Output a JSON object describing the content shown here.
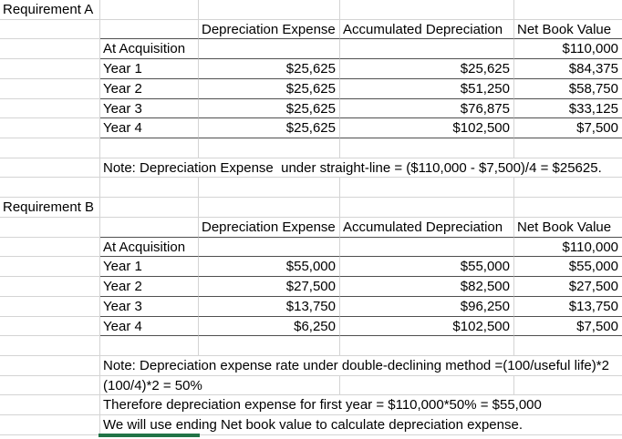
{
  "colors": {
    "gridline": "#d4d4d4",
    "table_border": "#4f4f4f",
    "selection_border_green": "#217346",
    "text": "#000000",
    "background": "#ffffff"
  },
  "requirement_a": {
    "title": "Requirement A",
    "headers": {
      "dep": "Depreciation Expense",
      "acc": "Accumulated Depreciation",
      "nbv": "Net Book Value"
    },
    "rows": [
      {
        "label": "At Acquisition",
        "dep": "",
        "acc": "",
        "nbv": "$110,000"
      },
      {
        "label": "Year 1",
        "dep": "$25,625",
        "acc": "$25,625",
        "nbv": "$84,375"
      },
      {
        "label": "Year 2",
        "dep": "$25,625",
        "acc": "$51,250",
        "nbv": "$58,750"
      },
      {
        "label": "Year 3",
        "dep": "$25,625",
        "acc": "$76,875",
        "nbv": "$33,125"
      },
      {
        "label": "Year 4",
        "dep": "$25,625",
        "acc": "$102,500",
        "nbv": "$7,500"
      }
    ],
    "note": "Note: Depreciation Expense  under straight-line = ($110,000 - $7,500)/4 = $25625."
  },
  "requirement_b": {
    "title": "Requirement B",
    "headers": {
      "dep": "Depreciation Expense",
      "acc": "Accumulated Depreciation",
      "nbv": "Net Book Value"
    },
    "rows": [
      {
        "label": "At Acquisition",
        "dep": "",
        "acc": "",
        "nbv": "$110,000"
      },
      {
        "label": "Year 1",
        "dep": "$55,000",
        "acc": "$55,000",
        "nbv": "$55,000"
      },
      {
        "label": "Year 2",
        "dep": "$27,500",
        "acc": "$82,500",
        "nbv": "$27,500"
      },
      {
        "label": "Year 3",
        "dep": "$13,750",
        "acc": "$96,250",
        "nbv": "$13,750"
      },
      {
        "label": "Year 4",
        "dep": "$6,250",
        "acc": "$102,500",
        "nbv": "$7,500"
      }
    ],
    "notes": [
      "Note: Depreciation expense rate under double-declining method =(100/useful life)*2",
      "(100/4)*2 = 50%",
      "Therefore depreciation expense for first year = $110,000*50% = $55,000",
      "We will use ending Net book value to calculate depreciation expense."
    ]
  }
}
